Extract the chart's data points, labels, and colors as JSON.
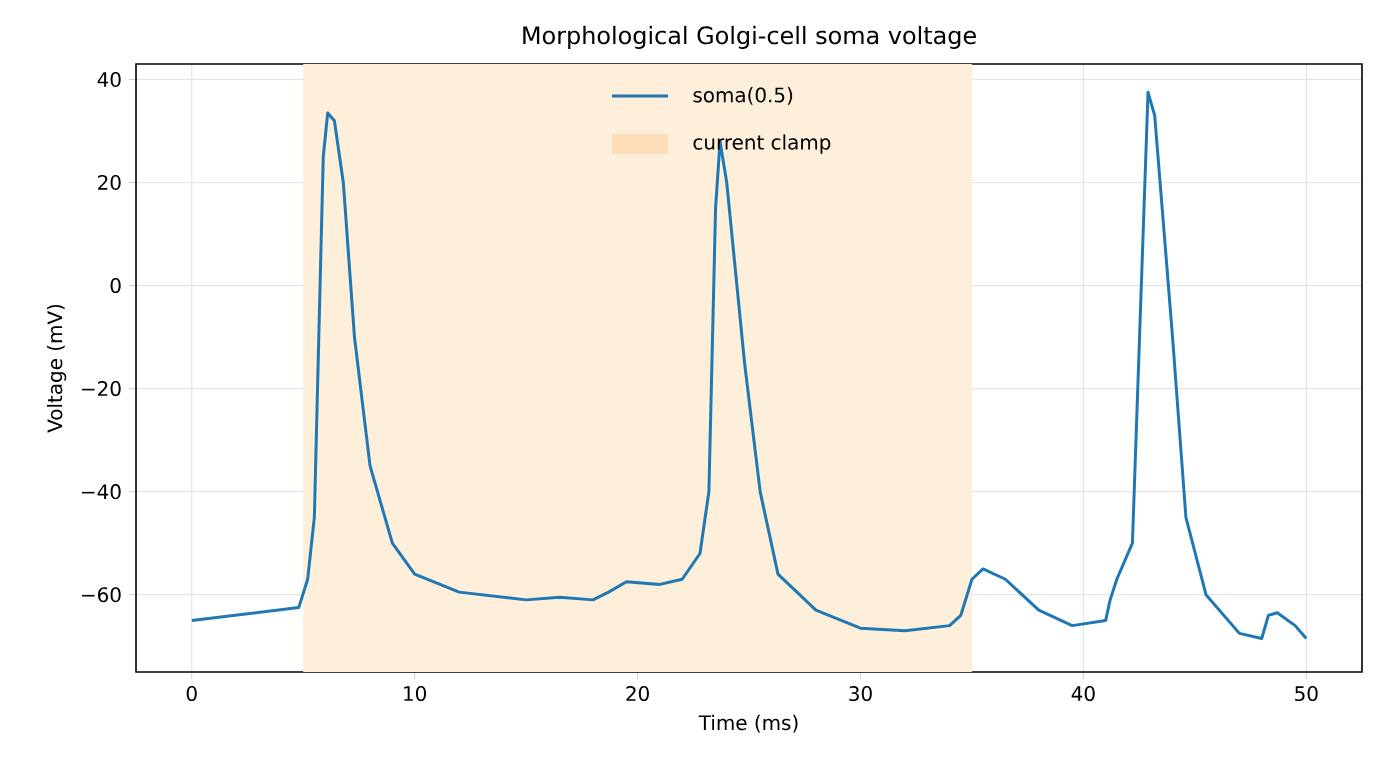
{
  "chart_data": {
    "type": "line",
    "title": "Morphological Golgi-cell soma voltage",
    "xlabel": "Time (ms)",
    "ylabel": "Voltage (mV)",
    "x": [
      0,
      4.8,
      5.2,
      5.5,
      5.7,
      5.9,
      6.1,
      6.4,
      6.8,
      7.3,
      8,
      9,
      10,
      12,
      15,
      16.5,
      18,
      18.7,
      19.5,
      21,
      22,
      22.8,
      23.2,
      23.5,
      23.7,
      24,
      24.8,
      25.5,
      26.3,
      28,
      30,
      32,
      34,
      34.5,
      35,
      35.5,
      36.5,
      38,
      39.5,
      41,
      41.2,
      41.5,
      42.2,
      42.6,
      42.9,
      43.2,
      44,
      44.6,
      45.5,
      47,
      48,
      48.3,
      48.7,
      49.5,
      50
    ],
    "series": [
      {
        "name": "soma(0.5)",
        "color": "#1f77b4",
        "values": [
          -65,
          -62.5,
          -57,
          -45,
          -10,
          25,
          33.5,
          32,
          20,
          -10,
          -35,
          -50,
          -56,
          -59.5,
          -61,
          -60.5,
          -61,
          -59.5,
          -57.5,
          -58,
          -57,
          -52,
          -40,
          15,
          28,
          20,
          -15,
          -40,
          -56,
          -63,
          -66.5,
          -67,
          -66,
          -64,
          -57,
          -55,
          -57,
          -63,
          -66,
          -65,
          -61,
          -57,
          -50,
          0,
          37.5,
          33,
          -10,
          -45,
          -60,
          -67.5,
          -68.5,
          -64,
          -63.5,
          -66,
          -68.5
        ]
      }
    ],
    "xlim": [
      -2.5,
      52.5
    ],
    "ylim": [
      -75,
      43
    ],
    "xticks": [
      0,
      10,
      20,
      30,
      40,
      50
    ],
    "yticks": [
      {
        "value": -60,
        "label": "−60"
      },
      {
        "value": -40,
        "label": "−40"
      },
      {
        "value": -20,
        "label": "−20"
      },
      0,
      20,
      40
    ],
    "grid": true,
    "legend": "top",
    "line_style": "solid",
    "bands": [
      {
        "axis": "x",
        "from": 5,
        "to": 35,
        "label": "current clamp",
        "color": "#fdefd9"
      }
    ]
  }
}
